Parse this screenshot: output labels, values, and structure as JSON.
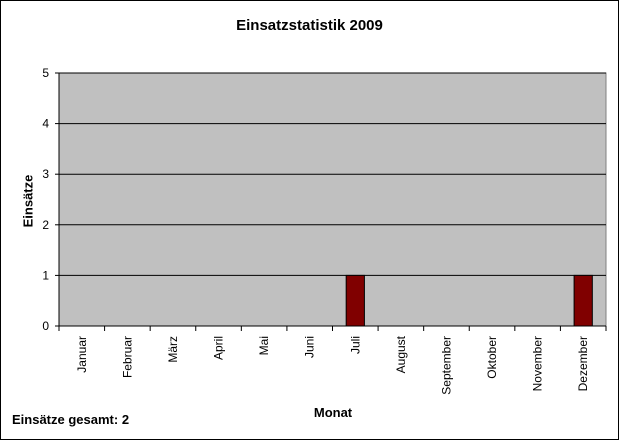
{
  "chart_data": {
    "type": "bar",
    "title": "Einsatzstatistik 2009",
    "xlabel": "Monat",
    "ylabel": "Einsätze",
    "categories": [
      "Januar",
      "Februar",
      "März",
      "April",
      "Mai",
      "Juni",
      "Juli",
      "August",
      "September",
      "Oktober",
      "November",
      "Dezember"
    ],
    "values": [
      0,
      0,
      0,
      0,
      0,
      0,
      1,
      0,
      0,
      0,
      0,
      1
    ],
    "ylim": [
      0,
      5
    ],
    "yticks": [
      "0",
      "1",
      "2",
      "3",
      "4",
      "5"
    ],
    "grid": true,
    "legend": "none",
    "colors": {
      "bar": "#800000",
      "plot_bg": "#c0c0c0"
    }
  },
  "footer": {
    "label": "Einsätze gesamt:",
    "value": "2"
  }
}
